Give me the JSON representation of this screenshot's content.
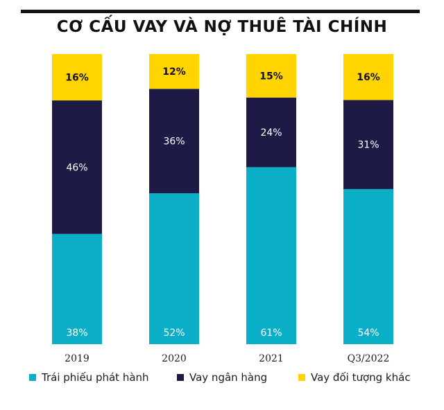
{
  "title": "CƠ CẤU VAY VÀ NỢ THUÊ TÀI CHÍNH",
  "colors": {
    "bonds": "#0aaec6",
    "bank": "#1d1b46",
    "other": "#ffd400"
  },
  "chart_data": {
    "type": "bar",
    "stacked": true,
    "categories": [
      "2019",
      "2020",
      "2021",
      "Q3/2022"
    ],
    "series": [
      {
        "name": "Trái phiếu phát hành",
        "values": [
          38,
          52,
          61,
          54
        ],
        "labels": [
          "38%",
          "52%",
          "61%",
          "54%"
        ]
      },
      {
        "name": "Vay ngân hàng",
        "values": [
          46,
          36,
          24,
          31
        ],
        "labels": [
          "46%",
          "36%",
          "24%",
          "31%"
        ]
      },
      {
        "name": "Vay đối tượng khác",
        "values": [
          16,
          12,
          15,
          16
        ],
        "labels": [
          "16%",
          "12%",
          "15%",
          "16%"
        ]
      }
    ],
    "ylim": [
      0,
      100
    ],
    "grid": false,
    "legend": "bottom"
  }
}
